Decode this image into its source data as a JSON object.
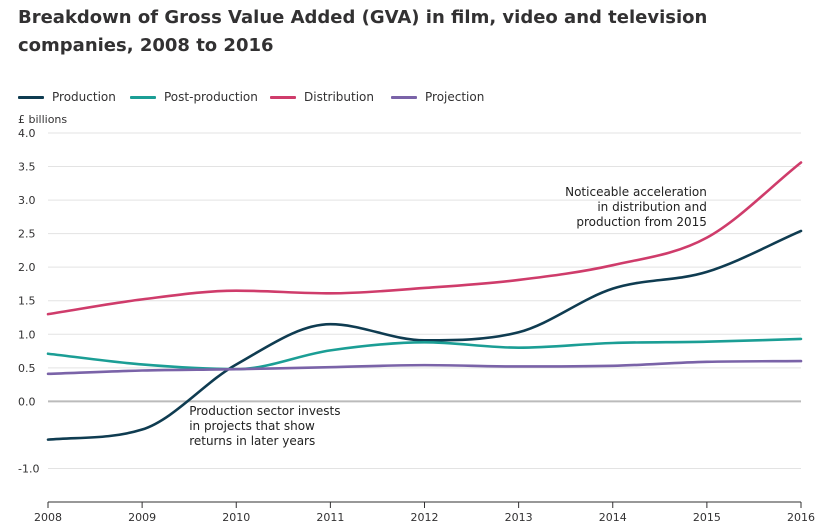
{
  "chart_data": {
    "type": "line",
    "title": "Breakdown of Gross Value Added (GVA) in film, video and television companies, 2008 to 2016",
    "ylabel": "£ billions",
    "xlabel": "",
    "ylim": [
      -1.5,
      4.0
    ],
    "yticks": [
      "4.0",
      "3.5",
      "3.0",
      "2.5",
      "2.0",
      "1.5",
      "1.0",
      "0.5",
      "0.0",
      "-1.0"
    ],
    "ytick_values": [
      4.0,
      3.5,
      3.0,
      2.5,
      2.0,
      1.5,
      1.0,
      0.5,
      0.0,
      -1.0
    ],
    "categories": [
      "2008",
      "2009",
      "2010",
      "2011",
      "2012",
      "2013",
      "2014",
      "2015",
      "2016"
    ],
    "x": [
      2008,
      2009,
      2010,
      2011,
      2012,
      2013,
      2014,
      2015,
      2016
    ],
    "grid": true,
    "legend_position": "top-left",
    "series": [
      {
        "name": "Production",
        "color": "#0f3c51",
        "values": [
          -0.57,
          -0.42,
          0.55,
          1.15,
          0.91,
          1.03,
          1.68,
          1.93,
          2.54
        ]
      },
      {
        "name": "Post-production",
        "color": "#1b9e95",
        "values": [
          0.71,
          0.55,
          0.48,
          0.76,
          0.88,
          0.8,
          0.87,
          0.89,
          0.93
        ]
      },
      {
        "name": "Distribution",
        "color": "#cf3c6b",
        "values": [
          1.3,
          1.52,
          1.65,
          1.61,
          1.69,
          1.81,
          2.03,
          2.44,
          3.56
        ]
      },
      {
        "name": "Projection",
        "color": "#7a63a8",
        "values": [
          0.41,
          0.46,
          0.48,
          0.51,
          0.54,
          0.52,
          0.53,
          0.59,
          0.6
        ]
      }
    ],
    "annotations": [
      {
        "lines": [
          "Noticeable acceleration",
          "in distribution and",
          "production from 2015"
        ],
        "anchor": "end",
        "x": 2015,
        "y": 3.06
      },
      {
        "lines": [
          "Production sector invests",
          "in projects that show",
          "returns in later years"
        ],
        "anchor": "start",
        "x": 2009.5,
        "y": -0.2
      }
    ]
  }
}
